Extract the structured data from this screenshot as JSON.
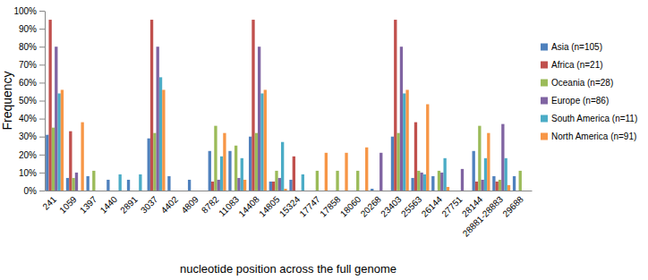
{
  "chart_data": {
    "type": "bar",
    "x_label": "nucleotide position across the full genome",
    "y_label": "Frequency",
    "categories": [
      "241",
      "1059",
      "1397",
      "1440",
      "2891",
      "3037",
      "4402",
      "4809",
      "8782",
      "11083",
      "14408",
      "14805",
      "15324",
      "17747",
      "17858",
      "18060",
      "20268",
      "23403",
      "25563",
      "26144",
      "27751",
      "28144",
      "28881-28883",
      "29688"
    ],
    "series": [
      {
        "name": "Asia (n=105)",
        "color": "#4f81bd",
        "values": [
          31,
          7,
          8,
          6,
          6,
          29,
          8,
          6,
          22,
          22,
          30,
          5,
          6,
          0,
          0,
          0,
          1,
          30,
          7,
          8,
          0,
          22,
          8,
          8
        ]
      },
      {
        "name": "Africa (n=21)",
        "color": "#c0504d",
        "values": [
          95,
          33,
          0,
          0,
          0,
          95,
          0,
          0,
          5,
          0,
          95,
          5,
          19,
          0,
          0,
          0,
          0,
          95,
          38,
          0,
          0,
          5,
          5,
          0
        ]
      },
      {
        "name": "Oceania (n=28)",
        "color": "#9bbb59",
        "values": [
          35,
          7,
          11,
          0,
          0,
          32,
          0,
          0,
          36,
          25,
          32,
          11,
          0,
          11,
          11,
          11,
          0,
          32,
          11,
          11,
          0,
          36,
          6,
          11
        ]
      },
      {
        "name": "Europe (n=86)",
        "color": "#8064a2",
        "values": [
          80,
          10,
          0,
          0,
          0,
          80,
          0,
          0,
          6,
          7,
          80,
          7,
          0,
          0,
          0,
          0,
          21,
          80,
          10,
          10,
          12,
          6,
          37,
          0
        ]
      },
      {
        "name": "South America (n=11)",
        "color": "#4bacc6",
        "values": [
          54,
          0,
          0,
          9,
          9,
          63,
          0,
          0,
          19,
          18,
          54,
          27,
          9,
          0,
          0,
          0,
          0,
          54,
          9,
          18,
          0,
          18,
          18,
          0
        ]
      },
      {
        "name": "North America (n=91)",
        "color": "#f79646",
        "values": [
          56,
          38,
          0,
          0,
          0,
          56,
          0,
          0,
          32,
          6,
          56,
          1,
          0,
          21,
          21,
          24,
          0,
          56,
          48,
          2,
          0,
          32,
          3,
          0
        ]
      }
    ],
    "ylim": [
      0,
      100
    ],
    "yticks": [
      {
        "value": 0,
        "label": "0%"
      },
      {
        "value": 10,
        "label": "10%"
      },
      {
        "value": 20,
        "label": "20%"
      },
      {
        "value": 30,
        "label": "30%"
      },
      {
        "value": 40,
        "label": "40%"
      },
      {
        "value": 50,
        "label": "50%"
      },
      {
        "value": 60,
        "label": "60%"
      },
      {
        "value": 70,
        "label": "70%"
      },
      {
        "value": 80,
        "label": "80%"
      },
      {
        "value": 90,
        "label": "90%"
      },
      {
        "value": 100,
        "label": "100%"
      }
    ],
    "grid": false,
    "legend": "right"
  }
}
